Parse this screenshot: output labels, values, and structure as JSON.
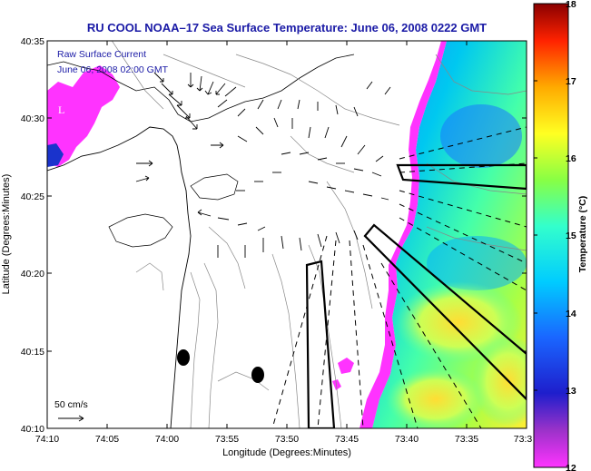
{
  "chart_data": {
    "type": "map",
    "title": "RU COOL  NOAA–17  Sea Surface Temperature:  June 06, 2008 0222 GMT",
    "legend": {
      "line1": "Raw Surface Current",
      "line2": "June 06, 2008 02:00 GMT"
    },
    "xlabel": "Longitude (Degrees:Minutes)",
    "ylabel": "Latitude (Degrees:Minutes)",
    "x_ticks": [
      "74:10",
      "74:05",
      "74:00",
      "73:55",
      "73:50",
      "73:45",
      "73:40",
      "73:35",
      "73:3"
    ],
    "y_ticks": [
      "40:35",
      "40:30",
      "40:25",
      "40:20",
      "40:15",
      "40:10"
    ],
    "colorbar": {
      "label": "Temperature (°C)",
      "range": [
        12,
        18
      ],
      "ticks": [
        "18",
        "17",
        "16",
        "15",
        "14",
        "13",
        "12"
      ]
    },
    "scale_label": "50 cm/s",
    "map_marker_label": "L",
    "colors": {
      "title": "#1a1aa6",
      "land_warm": "#ff44ff",
      "ocean_cool": "#00ccff",
      "ocean_mid": "#66ff66",
      "ocean_warm": "#ffff44"
    }
  }
}
